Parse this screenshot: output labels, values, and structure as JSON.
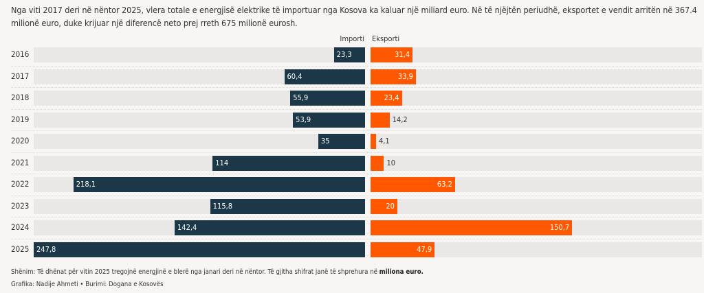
{
  "intro_text": "Nga viti 2017 deri në nëntor 2025, vlera totale e energjisë elektrike të importuar nga Kosova ka kaluar një miliard euro. Në të njëjtën periudhë, eksportet e vendit arritën në 367.4 milionë euro, duke krijuar një diferencë neto prej rreth 675 milionë eurosh.",
  "note_prefix": "Shënim: Të dhënat për vitin 2025 tregojnë energjinë e blerë nga janari deri në nëntor. Të gjitha shifrat janë të shprehura në ",
  "note_bold": "miliona euro.",
  "credit": "Grafika: Nadije Ahmeti • Burimi: Dogana e Kosovës",
  "colors": {
    "import": "#1b3748",
    "export": "#ff5800",
    "track": "#e9e8e6"
  },
  "chart_data": {
    "type": "bar",
    "orientation": "horizontal-diverging",
    "categories": [
      "2016",
      "2017",
      "2018",
      "2019",
      "2020",
      "2021",
      "2022",
      "2023",
      "2024",
      "2025"
    ],
    "series": [
      {
        "name": "Importi",
        "values": [
          23.3,
          60.4,
          55.9,
          53.9,
          35,
          114,
          218.1,
          115.8,
          142.4,
          247.8
        ],
        "labels": [
          "23,3",
          "60,4",
          "55,9",
          "53,9",
          "35",
          "114",
          "218,1",
          "115,8",
          "142,4",
          "247,8"
        ]
      },
      {
        "name": "Eksporti",
        "values": [
          31.4,
          33.9,
          23.4,
          14.2,
          4.1,
          10,
          63.2,
          20,
          150.7,
          47.9
        ],
        "labels": [
          "31,4",
          "33,9",
          "23,4",
          "14,2",
          "4,1",
          "10",
          "63,2",
          "20",
          "150,7",
          "47,9"
        ]
      }
    ],
    "xlim": [
      0,
      247.8
    ],
    "unit": "miliona euro",
    "grid": false
  }
}
